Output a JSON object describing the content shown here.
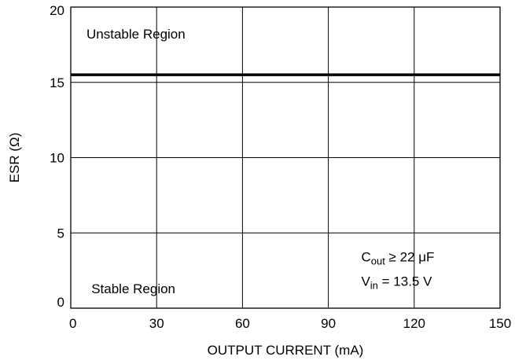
{
  "chart_data": {
    "type": "line",
    "xlabel": "OUTPUT CURRENT (mA)",
    "ylabel": "ESR (Ω)",
    "xlim": [
      0,
      150
    ],
    "ylim": [
      0,
      20
    ],
    "x_ticks": [
      0,
      30,
      60,
      90,
      120,
      150
    ],
    "y_ticks": [
      0,
      5,
      10,
      15,
      20
    ],
    "grid": true,
    "series": [
      {
        "x": [
          0,
          150
        ],
        "y": [
          15.5,
          15.5
        ]
      }
    ],
    "annotations": {
      "unstable": "Unstable Region",
      "stable": "Stable Region",
      "cout": {
        "main": "C",
        "sub": "out",
        "rest": " ≥ 22 μF"
      },
      "vin": {
        "main": "V",
        "sub": "in",
        "rest": " = 13.5 V"
      }
    },
    "colors": {
      "line": "#000000",
      "grid": "#000000"
    }
  }
}
